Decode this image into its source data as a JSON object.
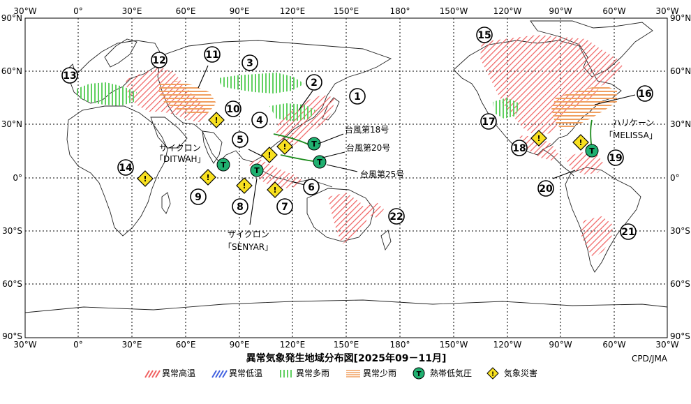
{
  "map": {
    "title": "異常気象発生地域分布図[2025年09－11月]",
    "credit": "CPD/JMA",
    "lon_ticks": [
      "30°W",
      "0°",
      "30°E",
      "60°E",
      "90°E",
      "120°E",
      "150°E",
      "180°",
      "150°W",
      "120°W",
      "90°W",
      "60°W",
      "30°W"
    ],
    "lat_ticks": [
      "90°N",
      "60°N",
      "30°N",
      "0°",
      "30°S",
      "60°S",
      "90°S"
    ],
    "region_numbers": [
      "1",
      "2",
      "3",
      "4",
      "5",
      "6",
      "7",
      "8",
      "9",
      "10",
      "11",
      "12",
      "13",
      "14",
      "15",
      "16",
      "17",
      "18",
      "19",
      "20",
      "21",
      "22"
    ],
    "storm_labels": {
      "typhoon18": "台風第18号",
      "typhoon20": "台風第20号",
      "typhoon25": "台風第25号",
      "cyclone_ditwah_1": "サイクロン",
      "cyclone_ditwah_2": "「DITWAH」",
      "cyclone_senyar_1": "サイクロン",
      "cyclone_senyar_2": "「SENYAR」",
      "hurricane_melissa_1": "ハリケーン",
      "hurricane_melissa_2": "「MELISSA」"
    },
    "storm_marker_letter": "T",
    "disaster_marker_symbol": "!",
    "legend": [
      {
        "label": "異常高温",
        "kind": "hatch",
        "color": "#f06060"
      },
      {
        "label": "異常低温",
        "kind": "hatch",
        "color": "#4060e0"
      },
      {
        "label": "異常多雨",
        "kind": "stripe",
        "color": "#60d060"
      },
      {
        "label": "異常少雨",
        "kind": "stripe",
        "color": "#f0a060"
      },
      {
        "label": "熱帯低気圧",
        "kind": "circle",
        "color": "#20b070"
      },
      {
        "label": "気象災害",
        "kind": "diamond",
        "color": "#f8e020"
      }
    ],
    "colors": {
      "hot": "#f06060",
      "wet": "#60d060",
      "dry": "#f0a060",
      "storm": "#20b070",
      "disaster": "#f8e020",
      "track": "#1a8a1a"
    }
  }
}
